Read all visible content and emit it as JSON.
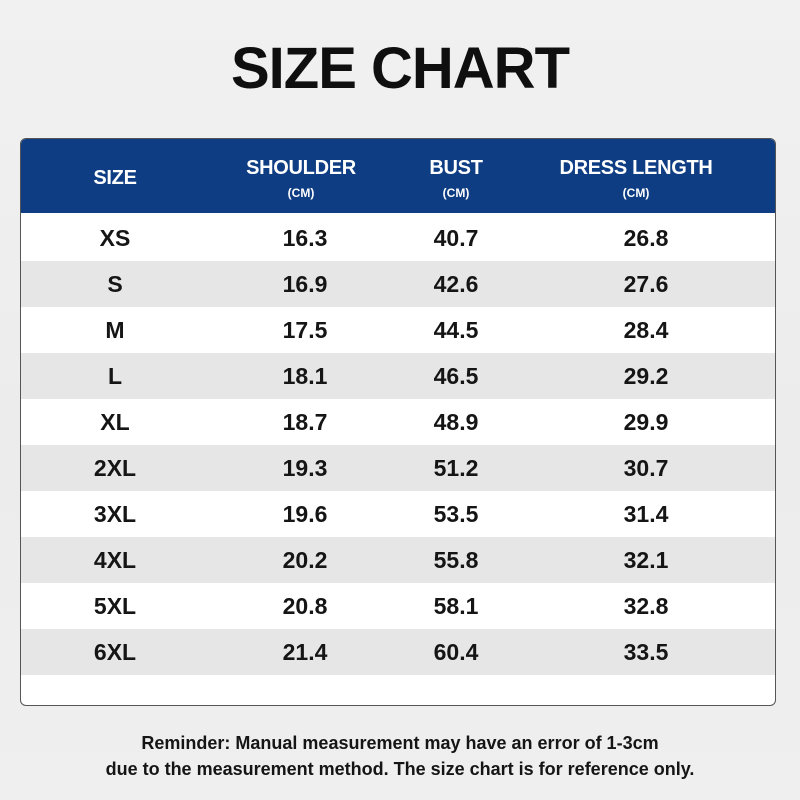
{
  "title": "SIZE CHART",
  "table": {
    "headers": [
      {
        "label": "SIZE",
        "unit": ""
      },
      {
        "label": "SHOULDER",
        "unit": "(CM)"
      },
      {
        "label": "BUST",
        "unit": "(CM)"
      },
      {
        "label": "DRESS LENGTH",
        "unit": "(CM)"
      }
    ],
    "rows": [
      [
        "XS",
        "16.3",
        "40.7",
        "26.8"
      ],
      [
        "S",
        "16.9",
        "42.6",
        "27.6"
      ],
      [
        "M",
        "17.5",
        "44.5",
        "28.4"
      ],
      [
        "L",
        "18.1",
        "46.5",
        "29.2"
      ],
      [
        "XL",
        "18.7",
        "48.9",
        "29.9"
      ],
      [
        "2XL",
        "19.3",
        "51.2",
        "30.7"
      ],
      [
        "3XL",
        "19.6",
        "53.5",
        "31.4"
      ],
      [
        "4XL",
        "20.2",
        "55.8",
        "32.1"
      ],
      [
        "5XL",
        "20.8",
        "58.1",
        "32.8"
      ],
      [
        "6XL",
        "21.4",
        "60.4",
        "33.5"
      ]
    ]
  },
  "reminder": {
    "line1": "Reminder: Manual measurement may have an error of 1-3cm",
    "line2": "due to the measurement method. The size chart is for reference only."
  },
  "colors": {
    "header_bg": "#0e3d83",
    "header_text": "#ffffff",
    "alt_row_bg": "#e6e6e6"
  }
}
